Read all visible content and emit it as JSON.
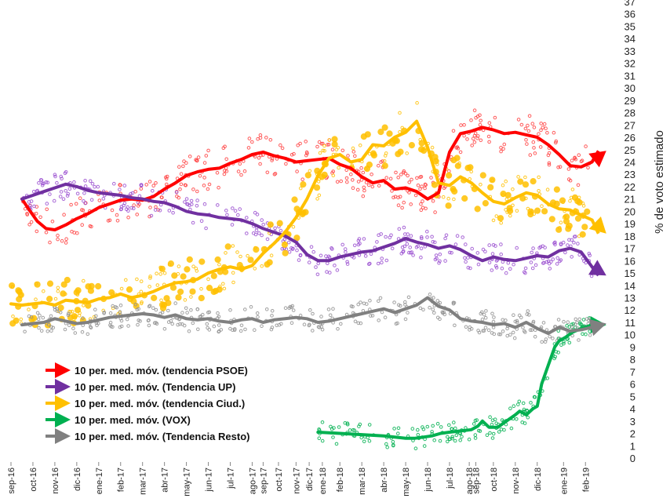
{
  "chart_data": {
    "type": "line",
    "title": "",
    "xlabel": "",
    "ylabel": "% de voto estimado",
    "ylim": [
      0,
      37
    ],
    "grid": false,
    "legend_position": "bottom-left",
    "x_tick_labels": [
      "sep-16",
      "oct-16",
      "nov-16",
      "dic-16",
      "ene-17",
      "feb-17",
      "mar-17",
      "abr-17",
      "may-17",
      "jun-17",
      "jul-17",
      "ago-17",
      "sep-17",
      "oct-17",
      "nov-17",
      "dic-17",
      "ene-18",
      "feb-18",
      "mar-18",
      "abr-18",
      "may-18",
      "jun-18",
      "jul-18",
      "ago-18",
      "sep-18",
      "oct-18",
      "nov-18",
      "dic-18",
      "ene-19",
      "feb-19"
    ],
    "x_tick_positions": [
      0,
      1,
      2,
      3,
      4,
      5,
      6,
      7,
      8,
      9,
      10,
      11,
      11.5,
      12.2,
      13,
      13.6,
      14.2,
      15,
      16,
      17,
      18,
      19,
      20,
      20.9,
      21.2,
      22,
      23,
      24,
      25.2,
      26.2
    ],
    "x_max": 27.3,
    "series": [
      {
        "name": "10 per. med. móv. (tendencia PSOE)",
        "color": "#ff0000",
        "dot_color": "#ff4040",
        "x": [
          0.5,
          0.8,
          1.2,
          1.6,
          2,
          2.5,
          3,
          3.5,
          4,
          4.5,
          5,
          5.5,
          6,
          6.5,
          7,
          7.5,
          8,
          8.5,
          9,
          9.5,
          10,
          10.5,
          11,
          11.5,
          12,
          12.5,
          13,
          13.5,
          14,
          14.5,
          15,
          15.5,
          16,
          16.5,
          17,
          17.5,
          18,
          18.5,
          19,
          19.5,
          20,
          20.5,
          21,
          21.5,
          22,
          22.5,
          23,
          23.5,
          24,
          24.5,
          25,
          25.5,
          26,
          26.5
        ],
        "values": [
          21,
          20.2,
          19.2,
          18.6,
          18.5,
          18.9,
          19.4,
          19.8,
          20.3,
          20.6,
          20.9,
          21,
          20.9,
          21.2,
          21.8,
          22.3,
          22.9,
          23.2,
          23.4,
          23.5,
          23.9,
          24.2,
          24.6,
          24.8,
          24.5,
          24.3,
          24.0,
          24.1,
          24.2,
          24.3,
          23.8,
          23.5,
          22.8,
          22.3,
          22.5,
          21.8,
          21.9,
          21.6,
          21.0,
          21.5,
          24.8,
          26.3,
          26.5,
          26.8,
          26.6,
          26.3,
          26.4,
          26.2,
          26.0,
          25.4,
          24.6,
          23.7,
          23.6,
          24.0
        ],
        "end_value": 24.9
      },
      {
        "name": "10 per. med. móv. (Tendencia UP)",
        "color": "#7030a0",
        "dot_color": "#9a4fd0",
        "x": [
          0.5,
          1,
          1.5,
          2,
          2.5,
          3,
          3.5,
          4,
          4.5,
          5,
          5.5,
          6,
          6.5,
          7,
          7.5,
          8,
          8.5,
          9,
          9.5,
          10,
          10.5,
          11,
          11.5,
          12,
          12.5,
          13,
          13.5,
          14,
          14.5,
          15,
          15.5,
          16,
          16.5,
          17,
          17.5,
          18,
          18.5,
          19,
          19.5,
          20,
          20.5,
          21,
          21.5,
          22,
          22.5,
          23,
          23.5,
          24,
          24.5,
          25,
          25.5,
          26,
          26.5
        ],
        "values": [
          21,
          21.3,
          21.6,
          21.9,
          22.2,
          22.0,
          21.7,
          21.5,
          21.4,
          21.3,
          21.1,
          21.0,
          20.8,
          20.7,
          20.4,
          20.0,
          19.8,
          19.7,
          19.5,
          19.4,
          19.3,
          19.0,
          18.6,
          18.3,
          18.0,
          17.5,
          16.5,
          16.0,
          16.0,
          16.3,
          16.5,
          16.7,
          16.8,
          17.1,
          17.4,
          17.8,
          17.5,
          17.3,
          17.0,
          17.2,
          16.9,
          16.4,
          16.0,
          16.3,
          16.1,
          16.0,
          16.2,
          16.4,
          16.3,
          16.8,
          17.0,
          16.7,
          15.5
        ],
        "end_value": 14.8
      },
      {
        "name": "10 per. med. móv. (tendencia Ciud.)",
        "color": "#ffc000",
        "dot_color": "#ffc000",
        "x": [
          0,
          0.5,
          1,
          1.5,
          2,
          2.5,
          3,
          3.5,
          4,
          4.5,
          5,
          5.5,
          6,
          6.5,
          7,
          7.5,
          8,
          8.5,
          9,
          9.5,
          10,
          10.5,
          11,
          11.5,
          12,
          12.5,
          13,
          13.5,
          14,
          14.5,
          15,
          15.5,
          16,
          16.5,
          17,
          17.5,
          18,
          18.5,
          19,
          19.5,
          20,
          20.5,
          21,
          21.5,
          22,
          22.5,
          23,
          23.5,
          24,
          24.5,
          25,
          25.5,
          26,
          26.5
        ],
        "values": [
          12.5,
          12.4,
          12.5,
          12.6,
          12.4,
          12.8,
          12.7,
          12.6,
          12.9,
          13.0,
          13.3,
          13.0,
          13.2,
          13.5,
          13.9,
          14.2,
          14.3,
          14.5,
          15.0,
          15.3,
          15.5,
          15.3,
          15.6,
          16.6,
          17.4,
          18.3,
          19.5,
          21.0,
          22.9,
          24.3,
          24.6,
          24.0,
          24.2,
          25.4,
          25.3,
          26.0,
          26.4,
          27.3,
          25.2,
          22.3,
          22.1,
          22.8,
          22.3,
          21.5,
          20.8,
          20.6,
          21.1,
          21.5,
          21.3,
          20.6,
          20.2,
          20.1,
          19.7,
          19.3
        ],
        "end_value": 18.2
      },
      {
        "name": "10 per. med. móv. (VOX)",
        "color": "#00b050",
        "dot_color": "#00b050",
        "x": [
          14,
          15,
          16,
          17,
          18,
          18.4,
          18.8,
          19.2,
          19.6,
          20,
          20.5,
          21,
          21.3,
          21.5,
          21.8,
          22.2,
          22.6,
          23,
          23.2,
          23.5,
          23.8,
          24,
          24.2,
          24.5,
          24.8,
          25,
          25.3,
          25.6,
          26,
          26.5
        ],
        "values": [
          2.1,
          2.0,
          1.9,
          1.8,
          1.6,
          1.6,
          1.7,
          1.8,
          2.0,
          2.1,
          2.2,
          2.3,
          2.6,
          3.0,
          2.5,
          2.5,
          3.0,
          3.5,
          3.8,
          3.5,
          4.0,
          4.2,
          6.0,
          7.5,
          9.0,
          9.5,
          9.8,
          10.2,
          10.5,
          10.8
        ],
        "end_value": 10.8
      },
      {
        "name": "10 per. med. móv. (Tendencia Resto)",
        "color": "#808080",
        "dot_color": "#909090",
        "x": [
          0.5,
          1,
          1.5,
          2,
          2.5,
          3,
          3.5,
          4,
          4.5,
          5,
          5.5,
          6,
          6.5,
          7,
          7.5,
          8,
          8.5,
          9,
          9.5,
          10,
          10.5,
          11,
          11.5,
          12,
          12.5,
          13,
          13.5,
          14,
          14.5,
          15,
          15.5,
          16,
          16.5,
          17,
          17.5,
          18,
          18.5,
          19,
          19.5,
          20,
          20.5,
          21,
          21.5,
          22,
          22.5,
          23,
          23.5,
          24,
          24.5,
          25,
          25.5,
          26,
          26.5
        ],
        "values": [
          10.8,
          10.9,
          11.0,
          11.3,
          11.1,
          10.9,
          11.0,
          11.2,
          11.4,
          11.5,
          11.6,
          11.7,
          11.6,
          11.4,
          11.6,
          11.3,
          11.2,
          11.3,
          11.1,
          11.0,
          11.2,
          11.3,
          11.0,
          11.2,
          11.3,
          11.4,
          11.3,
          11.0,
          11.1,
          11.3,
          11.5,
          11.7,
          11.9,
          12.1,
          11.8,
          12.1,
          12.4,
          13.0,
          12.3,
          12.0,
          11.3,
          11.1,
          11.0,
          10.8,
          10.9,
          10.6,
          11.0,
          10.5,
          10.1,
          10.6,
          10.3,
          10.4,
          10.6
        ],
        "end_value": 10.9
      }
    ]
  }
}
